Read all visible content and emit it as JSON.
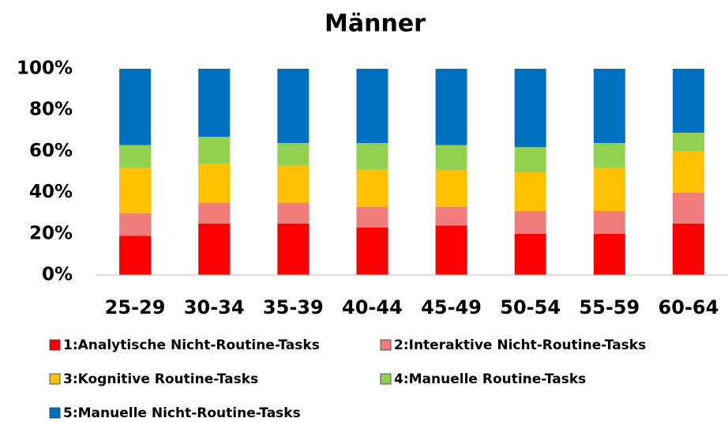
{
  "chart_data": {
    "type": "stacked_bar",
    "title": "Männer",
    "categories": [
      "25-29",
      "30-34",
      "35-39",
      "40-44",
      "45-49",
      "50-54",
      "55-59",
      "60-64"
    ],
    "series": [
      {
        "name": "1:Analytische Nicht-Routine-Tasks",
        "color": "#ff0000",
        "values": [
          19,
          25,
          25,
          23,
          24,
          20,
          20,
          25
        ]
      },
      {
        "name": "2:Interaktive Nicht-Routine-Tasks",
        "color": "#f07c7c",
        "values": [
          11,
          10,
          10,
          10,
          9,
          11,
          11,
          15
        ]
      },
      {
        "name": "3:Kognitive Routine-Tasks",
        "color": "#ffc000",
        "values": [
          22,
          19,
          18,
          18,
          18,
          19,
          21,
          20
        ]
      },
      {
        "name": "4:Manuelle Routine-Tasks",
        "color": "#92d050",
        "values": [
          11,
          13,
          11,
          13,
          12,
          12,
          12,
          9
        ]
      },
      {
        "name": "5:Manuelle Nicht-Routine-Tasks",
        "color": "#0070c0",
        "values": [
          37,
          33,
          36,
          36,
          37,
          38,
          36,
          31
        ]
      }
    ],
    "ylim": [
      0,
      100
    ],
    "yticks": [
      {
        "value": 0,
        "label": "0%"
      },
      {
        "value": 20,
        "label": "20%"
      },
      {
        "value": 40,
        "label": "40%"
      },
      {
        "value": 60,
        "label": "60%"
      },
      {
        "value": 80,
        "label": "80%"
      },
      {
        "value": 100,
        "label": "100%"
      }
    ],
    "grid": false
  }
}
